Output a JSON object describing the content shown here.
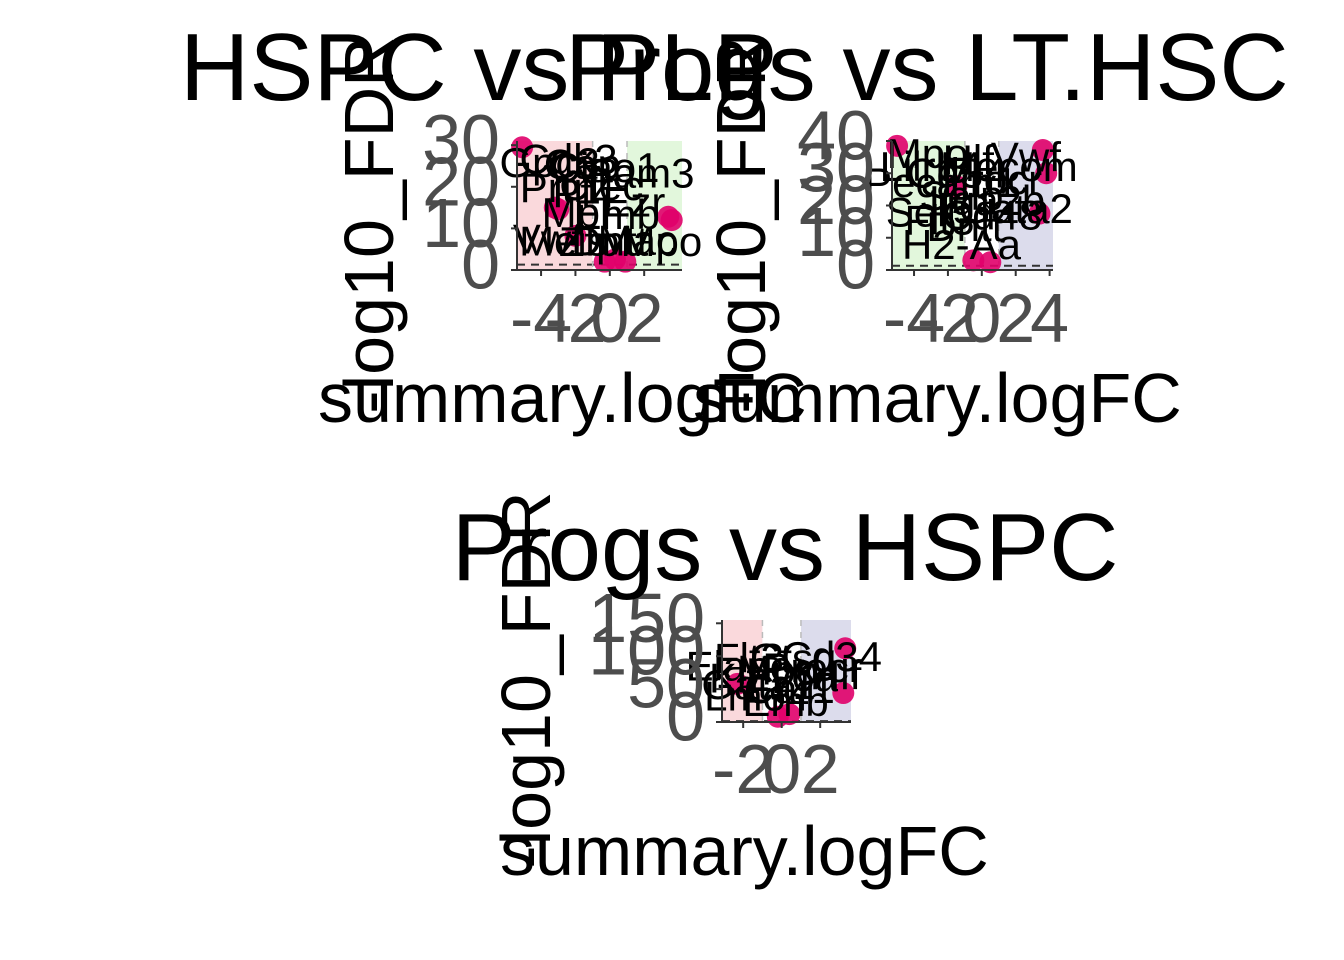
{
  "chart_data": [
    {
      "type": "scatter",
      "title": "HSPC vs PLP",
      "xlabel": "summary.logFC",
      "ylabel": "-log10_FDR",
      "xlim": [
        -5.4,
        4.2
      ],
      "ylim": [
        0,
        31
      ],
      "x_ticks": [
        -4,
        -2,
        0,
        2
      ],
      "x_tick_labels": [
        "-4",
        "-2",
        "0",
        "2"
      ],
      "y_ticks": [
        0,
        10,
        20,
        30
      ],
      "y_tick_labels": [
        "0",
        "10",
        "20",
        "30"
      ],
      "regions": [
        {
          "x0": -5.4,
          "x1": -1.0,
          "color": "#fad9dc"
        },
        {
          "x0": -1.0,
          "x1": 1.0,
          "color": "#ffffff"
        },
        {
          "x0": 1.0,
          "x1": 4.2,
          "color": "#e2f7dc"
        }
      ],
      "threshold_fdr": 1.3,
      "points": [
        {
          "x": -5.1,
          "y": 29.5
        },
        {
          "x": -3.2,
          "y": 15.0
        },
        {
          "x": -3.0,
          "y": 14.6
        },
        {
          "x": -2.0,
          "y": 8.2
        },
        {
          "x": 3.4,
          "y": 12.8
        },
        {
          "x": 3.6,
          "y": 12.0
        },
        {
          "x": -0.3,
          "y": 2.0
        },
        {
          "x": 0.3,
          "y": 2.5
        },
        {
          "x": 0.9,
          "y": 2.0
        }
      ],
      "labels": [
        {
          "text": "Gpc3",
          "x": -3.5,
          "y": 25.0
        },
        {
          "text": "Cdk3",
          "x": -2.4,
          "y": 25.8
        },
        {
          "text": "Cap",
          "x": -1.6,
          "y": 24.6
        },
        {
          "text": "Ciao1",
          "x": -0.3,
          "y": 23.8
        },
        {
          "text": "Fam3",
          "x": 1.8,
          "y": 22.5
        },
        {
          "text": "Pf4",
          "x": -1.5,
          "y": 17.8
        },
        {
          "text": "Ezr",
          "x": 1.4,
          "y": 15.5
        },
        {
          "text": "Prtn",
          "x": -3.0,
          "y": 19.0
        },
        {
          "text": "Mpl",
          "x": -2.0,
          "y": 13.0
        },
        {
          "text": "Clec",
          "x": -0.5,
          "y": 19.5
        },
        {
          "text": "Emb",
          "x": 0.4,
          "y": 12.5
        },
        {
          "text": "Vwf",
          "x": -3.6,
          "y": 6.6
        },
        {
          "text": "Meis",
          "x": -2.7,
          "y": 6.2
        },
        {
          "text": "Zfp",
          "x": -1.2,
          "y": 6.0
        },
        {
          "text": "Dntt",
          "x": 0.0,
          "y": 6.2
        },
        {
          "text": "Mac",
          "x": 1.6,
          "y": 6.4
        },
        {
          "text": "Mpo",
          "x": 3.0,
          "y": 6.0
        }
      ]
    },
    {
      "type": "scatter",
      "title": "Progs vs LT.HSC",
      "xlabel": "summary.logFC",
      "ylabel": "-log10_FDR",
      "xlim": [
        -5.3,
        4.2
      ],
      "ylim": [
        0,
        40
      ],
      "x_ticks": [
        -4,
        -2,
        0,
        2,
        4
      ],
      "x_tick_labels": [
        "-4",
        "-2",
        "0",
        "2",
        "4"
      ],
      "y_ticks": [
        0,
        10,
        20,
        30,
        40
      ],
      "y_tick_labels": [
        "0",
        "10",
        "20",
        "30",
        "40"
      ],
      "regions": [
        {
          "x0": -5.3,
          "x1": -1.0,
          "color": "#e2f7dc"
        },
        {
          "x0": -1.0,
          "x1": 1.0,
          "color": "#ffffff"
        },
        {
          "x0": 1.0,
          "x1": 4.2,
          "color": "#dcdcec"
        }
      ],
      "threshold_fdr": 1.3,
      "points": [
        {
          "x": -5.0,
          "y": 38.5
        },
        {
          "x": -1.5,
          "y": 26.0
        },
        {
          "x": 3.6,
          "y": 37.2
        },
        {
          "x": 3.8,
          "y": 30.0
        },
        {
          "x": 3.4,
          "y": 17.5
        },
        {
          "x": -0.5,
          "y": 3.0
        },
        {
          "x": 0.5,
          "y": 2.4
        }
      ],
      "labels": [
        {
          "text": "Mpo",
          "x": -3.2,
          "y": 35.0
        },
        {
          "text": "Lilrb4",
          "x": -3.0,
          "y": 31.0
        },
        {
          "text": "Pecam1",
          "x": -2.4,
          "y": 26.0
        },
        {
          "text": "Cd34",
          "x": -1.5,
          "y": 29.0
        },
        {
          "text": "Hlf",
          "x": -0.8,
          "y": 33.0
        },
        {
          "text": "Procr",
          "x": 0.6,
          "y": 27.0
        },
        {
          "text": "Mecom",
          "x": 1.6,
          "y": 31.0
        },
        {
          "text": "Vwf",
          "x": 2.6,
          "y": 34.0
        },
        {
          "text": "Selp",
          "x": -1.2,
          "y": 22.0
        },
        {
          "text": "Itga2b",
          "x": 0.3,
          "y": 20.5
        },
        {
          "text": "Gata2",
          "x": 2.0,
          "y": 18.0
        },
        {
          "text": "Sell",
          "x": -3.6,
          "y": 17.0
        },
        {
          "text": "Flt3",
          "x": -2.5,
          "y": 14.5
        },
        {
          "text": "Dntt",
          "x": -1.0,
          "y": 12.5
        },
        {
          "text": "Cd48",
          "x": 0.6,
          "y": 16.0
        },
        {
          "text": "H2-Aa",
          "x": -1.2,
          "y": 6.8
        }
      ]
    },
    {
      "type": "scatter",
      "title": "Progs vs HSPC",
      "xlabel": "summary.logFC",
      "ylabel": "-log10_FDR",
      "xlim": [
        -3.1,
        3.6
      ],
      "ylim": [
        0,
        155
      ],
      "x_ticks": [
        -2,
        0,
        2
      ],
      "x_tick_labels": [
        "-2",
        "0",
        "2"
      ],
      "y_ticks": [
        0,
        50,
        100,
        150
      ],
      "y_tick_labels": [
        "0",
        "50",
        "100",
        "150"
      ],
      "regions": [
        {
          "x0": -3.1,
          "x1": -1.0,
          "color": "#fad9dc"
        },
        {
          "x0": -1.0,
          "x1": 1.0,
          "color": "#ffffff"
        },
        {
          "x0": 1.0,
          "x1": 3.6,
          "color": "#dcdcec"
        }
      ],
      "threshold_fdr": 1.3,
      "points": [
        {
          "x": -2.3,
          "y": 58.0
        },
        {
          "x": 3.3,
          "y": 112.0
        },
        {
          "x": 3.2,
          "y": 44.0
        },
        {
          "x": -0.2,
          "y": 8.0
        },
        {
          "x": 0.4,
          "y": 12.0
        }
      ],
      "labels": [
        {
          "text": "Flt3",
          "x": -1.7,
          "y": 92.0
        },
        {
          "text": "Ctsg",
          "x": 0.6,
          "y": 92.0
        },
        {
          "text": "Cd34",
          "x": 2.6,
          "y": 94.0
        },
        {
          "text": "Elane",
          "x": -2.2,
          "y": 80.0
        },
        {
          "text": "Mpo",
          "x": -0.2,
          "y": 74.0
        },
        {
          "text": "Procr",
          "x": 1.6,
          "y": 78.0
        },
        {
          "text": "Kit",
          "x": -2.5,
          "y": 62.0
        },
        {
          "text": "Ly6a",
          "x": 0.6,
          "y": 64.0
        },
        {
          "text": "Hlf",
          "x": 2.8,
          "y": 66.0
        },
        {
          "text": "Gata1",
          "x": -1.2,
          "y": 52.0
        },
        {
          "text": "Car1",
          "x": 0.4,
          "y": 46.0
        },
        {
          "text": "Lmo4",
          "x": -1.3,
          "y": 34.0
        },
        {
          "text": "Emb",
          "x": 0.2,
          "y": 26.0
        }
      ]
    }
  ],
  "colors": {
    "point": "#e0006a",
    "text": "#000000",
    "tick_text": "#4d4d4d",
    "axis": "#333333",
    "threshold": "#333333"
  }
}
